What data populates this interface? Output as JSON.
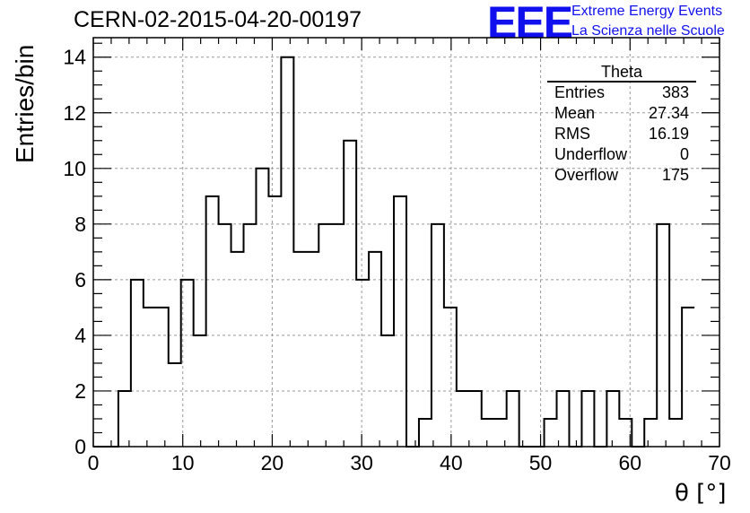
{
  "chart_data": {
    "type": "histogram",
    "title": "CERN-02-2015-04-20-00197",
    "xlabel": "θ [°]",
    "ylabel": "Entries/bin",
    "xlim": [
      0,
      70
    ],
    "ylim": [
      0,
      14.7
    ],
    "grid": true,
    "bin_width": 1.4,
    "bins_start": 0,
    "values": [
      0,
      0,
      2,
      6,
      5,
      5,
      3,
      6,
      4,
      9,
      8,
      7,
      8,
      10,
      9,
      14,
      7,
      7,
      8,
      8,
      11,
      6,
      7,
      4,
      9,
      0,
      1,
      8,
      5,
      2,
      2,
      1,
      1,
      2,
      0,
      0,
      1,
      2,
      0,
      2,
      0,
      2,
      1,
      0,
      1,
      8,
      1,
      5
    ],
    "x_ticks": [
      "0",
      "10",
      "20",
      "30",
      "40",
      "50",
      "60",
      "70"
    ],
    "y_ticks": [
      "0",
      "2",
      "4",
      "6",
      "8",
      "10",
      "12",
      "14"
    ],
    "stats_box": {
      "title": "Theta",
      "rows": [
        {
          "label": "Entries",
          "value": "383"
        },
        {
          "label": "Mean",
          "value": "27.34"
        },
        {
          "label": "RMS",
          "value": "16.19"
        },
        {
          "label": "Underflow",
          "value": "0"
        },
        {
          "label": "Overflow",
          "value": "175"
        }
      ],
      "placement": "top-right"
    },
    "line_color": "#000000",
    "grid_color": "#999999"
  },
  "logo": {
    "mark": "EEE",
    "line1": "Extreme Energy Events",
    "line2": "La Scienza nelle Scuole",
    "color": "#1010ee"
  }
}
